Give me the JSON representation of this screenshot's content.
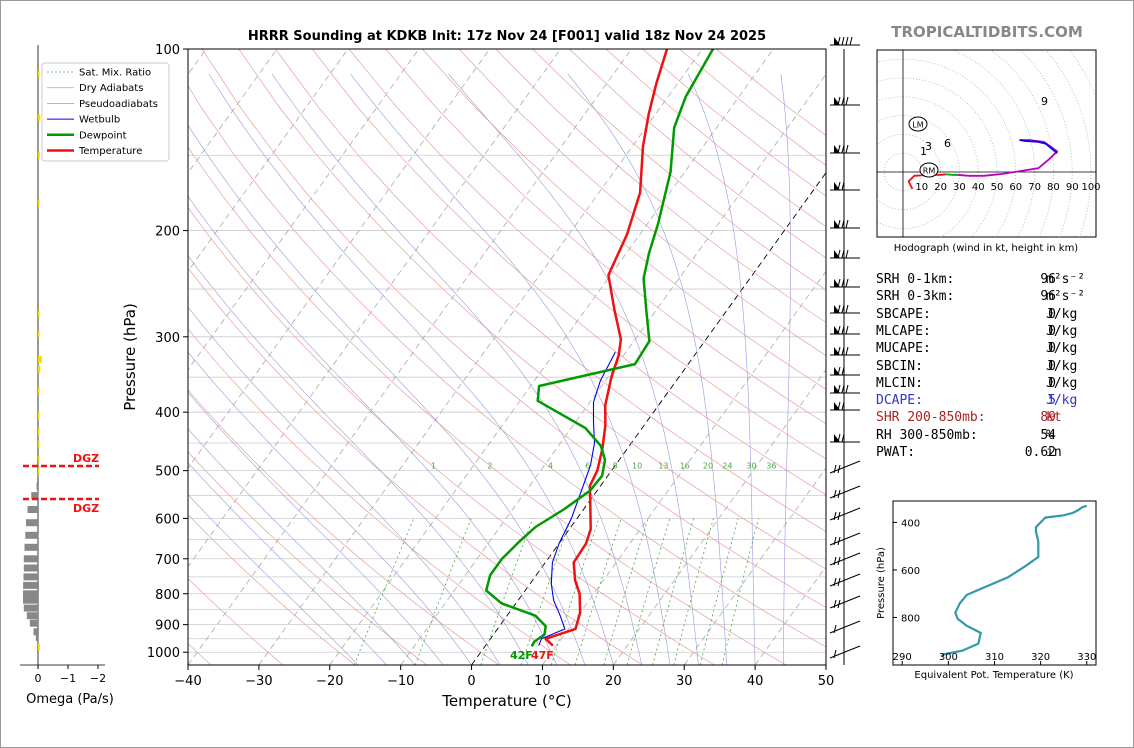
{
  "brand": "TROPICALTIDBITS.COM",
  "chart_data": [
    {
      "type": "line",
      "title": "HRRR Sounding at KDKB Init: 17z Nov 24 [F001] valid 18z Nov 24 2025",
      "xlabel": "Temperature (°C)",
      "ylabel": "Pressure (hPa)",
      "xlim": [
        -40,
        50
      ],
      "ylim": [
        1050,
        100
      ],
      "y_scale": "log",
      "x_ticks": [
        "−40",
        "−30",
        "−20",
        "−10",
        "0",
        "10",
        "20",
        "30",
        "40",
        "50"
      ],
      "y_ticks": [
        "100",
        "200",
        "300",
        "400",
        "500",
        "600",
        "700",
        "800",
        "900",
        "1000"
      ],
      "legend": {
        "placement": "top-left",
        "entries": [
          "Sat. Mix. Ratio",
          "Dry Adiabats",
          "Pseudoadiabats",
          "Wetbulb",
          "Dewpoint",
          "Temperature"
        ]
      },
      "mixing_ratio_labels": [
        "1",
        "2",
        "4",
        "6",
        "8",
        "10",
        "13",
        "16",
        "20",
        "24",
        "30",
        "36"
      ],
      "surface_labels": {
        "dewpoint": "42F",
        "temperature": "47F"
      },
      "series": [
        {
          "name": "Temperature",
          "color": "#ee1111",
          "points": [
            [
              9.5,
              975
            ],
            [
              7.8,
              950
            ],
            [
              11,
              915
            ],
            [
              10,
              860
            ],
            [
              8,
              800
            ],
            [
              6,
              760
            ],
            [
              4,
              710
            ],
            [
              3.8,
              660
            ],
            [
              3,
              625
            ],
            [
              0.5,
              570
            ],
            [
              -1.5,
              530
            ],
            [
              -2,
              500
            ],
            [
              -3.5,
              460
            ],
            [
              -5.5,
              420
            ],
            [
              -7.5,
              390
            ],
            [
              -9.5,
              350
            ],
            [
              -10.7,
              322
            ],
            [
              -12,
              303
            ],
            [
              -16,
              270
            ],
            [
              -20.3,
              237
            ],
            [
              -21.8,
              203
            ],
            [
              -24.2,
              173
            ],
            [
              -28.5,
              145
            ],
            [
              -31,
              128
            ],
            [
              -33,
              114
            ],
            [
              -35,
              100
            ]
          ]
        },
        {
          "name": "Wetbulb",
          "color": "#0000ee",
          "points": [
            [
              7.5,
              975
            ],
            [
              7.2,
              950
            ],
            [
              9.5,
              915
            ],
            [
              7.5,
              870
            ],
            [
              5,
              820
            ],
            [
              3,
              770
            ],
            [
              1,
              710
            ],
            [
              0,
              660
            ],
            [
              -0.8,
              600
            ],
            [
              -2.2,
              540
            ],
            [
              -3.5,
              490
            ],
            [
              -5.2,
              450
            ],
            [
              -7.5,
              415
            ],
            [
              -9.5,
              385
            ],
            [
              -10.7,
              355
            ],
            [
              -11.5,
              318
            ]
          ]
        },
        {
          "name": "Dewpoint",
          "color": "#009900",
          "points": [
            [
              6.6,
              978
            ],
            [
              6.5,
              960
            ],
            [
              7.2,
              935
            ],
            [
              6.5,
              905
            ],
            [
              4,
              870
            ],
            [
              -2,
              830
            ],
            [
              -5.5,
              790
            ],
            [
              -6.5,
              745
            ],
            [
              -6.5,
              700
            ],
            [
              -5.8,
              655
            ],
            [
              -5,
              620
            ],
            [
              -2.8,
              580
            ],
            [
              -1,
              540
            ],
            [
              -0.8,
              510
            ],
            [
              -2,
              480
            ],
            [
              -4,
              455
            ],
            [
              -8,
              425
            ],
            [
              -17.5,
              383
            ],
            [
              -18.8,
              362
            ],
            [
              -7.5,
              333
            ],
            [
              -7.8,
              305
            ],
            [
              -11.5,
              270
            ],
            [
              -15,
              240
            ],
            [
              -16.8,
              218
            ],
            [
              -18.5,
              195
            ],
            [
              -22,
              160
            ],
            [
              -26,
              135
            ],
            [
              -27.5,
              120
            ],
            [
              -28.5,
              100
            ]
          ]
        }
      ]
    },
    {
      "type": "line",
      "title": "Hodograph (wind in kt, height in km)",
      "ring_labels": [
        "10",
        "20",
        "30",
        "40",
        "50",
        "60",
        "70",
        "80",
        "90",
        "100"
      ],
      "markers": [
        "LM",
        "RM"
      ],
      "height_labels": [
        "1",
        "3",
        "6",
        "9"
      ],
      "series": [
        {
          "color": "#ee1111",
          "points": [
            [
              5,
              -9
            ],
            [
              3,
              -5
            ],
            [
              6,
              -2
            ],
            [
              10,
              -1.8
            ],
            [
              13,
              -1.5
            ],
            [
              16,
              -1.5
            ],
            [
              20,
              -1.5
            ],
            [
              23,
              -1.2
            ]
          ]
        },
        {
          "color": "#00aa00",
          "points": [
            [
              23,
              -1.2
            ],
            [
              27,
              -1.6
            ],
            [
              29,
              -1.5
            ]
          ]
        },
        {
          "color": "#bb00bb",
          "points": [
            [
              29,
              -1.5
            ],
            [
              35,
              -2
            ],
            [
              43,
              -2
            ],
            [
              53,
              -1
            ],
            [
              72,
              2
            ],
            [
              78,
              7
            ],
            [
              82,
              11
            ],
            [
              75,
              16
            ],
            [
              67,
              17
            ],
            [
              62,
              17
            ]
          ]
        },
        {
          "color": "#0000ee",
          "points": [
            [
              62,
              17
            ],
            [
              65,
              16.5
            ],
            [
              72,
              16
            ],
            [
              76,
              15
            ],
            [
              82,
              10
            ]
          ]
        }
      ]
    },
    {
      "type": "line",
      "xlabel": "Equivalent Pot. Temperature (K)",
      "ylabel": "Pressure (hPa)",
      "xlim": [
        288,
        332
      ],
      "ylim": [
        1000,
        310
      ],
      "x_ticks": [
        "290",
        "300",
        "310",
        "320",
        "330"
      ],
      "y_ticks": [
        "400",
        "600",
        "800"
      ],
      "series": [
        {
          "color": "#3399aa",
          "points": [
            [
              298.5,
              965
            ],
            [
              299,
              955
            ],
            [
              303,
              940
            ],
            [
              306.5,
              910
            ],
            [
              307,
              865
            ],
            [
              304,
              835
            ],
            [
              302,
              805
            ],
            [
              301.5,
              780
            ],
            [
              302.5,
              740
            ],
            [
              304,
              705
            ],
            [
              307,
              680
            ],
            [
              313,
              630
            ],
            [
              317,
              580
            ],
            [
              319.5,
              545
            ],
            [
              319.5,
              480
            ],
            [
              319,
              440
            ],
            [
              319,
              420
            ],
            [
              320,
              400
            ],
            [
              321,
              380
            ],
            [
              325,
              370
            ],
            [
              327,
              360
            ],
            [
              328,
              350
            ],
            [
              329,
              336
            ],
            [
              330,
              330
            ]
          ]
        }
      ]
    },
    {
      "type": "bar",
      "xlabel": "Omega (Pa/s)",
      "x_ticks": [
        "0",
        "−1",
        "−2"
      ],
      "markers": [
        "DGZ",
        "DGZ"
      ],
      "series": [
        {
          "color": "#f5d90a",
          "points": [
            [
              -0.1,
              110
            ],
            [
              -0.15,
              130
            ],
            [
              -0.12,
              150
            ],
            [
              -0.05,
              180
            ],
            [
              -0.05,
              275
            ],
            [
              -0.1,
              297
            ],
            [
              -0.25,
              327
            ],
            [
              -0.15,
              340
            ],
            [
              -0.05,
              368
            ],
            [
              -0.05,
              405
            ],
            [
              -0.05,
              430
            ],
            [
              -0.05,
              452
            ],
            [
              -0.05,
              478
            ],
            [
              -0.05,
              500
            ],
            [
              -0.12,
              980
            ]
          ]
        },
        {
          "color": "#888888",
          "points": [
            [
              0.1,
              530
            ],
            [
              0.45,
              550
            ],
            [
              0.7,
              580
            ],
            [
              0.8,
              610
            ],
            [
              0.85,
              640
            ],
            [
              0.9,
              670
            ],
            [
              0.95,
              700
            ],
            [
              0.95,
              725
            ],
            [
              0.97,
              750
            ],
            [
              0.99,
              775
            ],
            [
              1,
              800
            ],
            [
              1,
              820
            ],
            [
              0.95,
              845
            ],
            [
              0.75,
              870
            ],
            [
              0.55,
              895
            ],
            [
              0.3,
              925
            ],
            [
              0.15,
              945
            ]
          ]
        }
      ]
    }
  ],
  "indices": [
    {
      "label": "SRH 0-1km:",
      "value": "96",
      "unit": "m²s⁻²",
      "color": "#000000"
    },
    {
      "label": "SRH 0-3km:",
      "value": "96",
      "unit": "m²s⁻²",
      "color": "#000000"
    },
    {
      "label": "SBCAPE:",
      "value": "0",
      "unit": "J/kg",
      "color": "#000000"
    },
    {
      "label": "MLCAPE:",
      "value": "0",
      "unit": "J/kg",
      "color": "#000000"
    },
    {
      "label": "MUCAPE:",
      "value": "0",
      "unit": "J/kg",
      "color": "#000000"
    },
    {
      "label": "SBCIN:",
      "value": "0",
      "unit": "J/kg",
      "color": "#000000"
    },
    {
      "label": "MLCIN:",
      "value": "0",
      "unit": "J/kg",
      "color": "#000000"
    },
    {
      "label": "DCAPE:",
      "value": "5",
      "unit": "J/kg",
      "color": "#3333cc"
    },
    {
      "label": "SHR 200-850mb:",
      "value": "89",
      "unit": "kt",
      "color": "#aa2222"
    },
    {
      "label": "RH 300-850mb:",
      "value": "54",
      "unit": "%",
      "color": "#000000"
    },
    {
      "label": "PWAT:",
      "value": "0.62",
      "unit": "in",
      "color": "#000000"
    }
  ]
}
